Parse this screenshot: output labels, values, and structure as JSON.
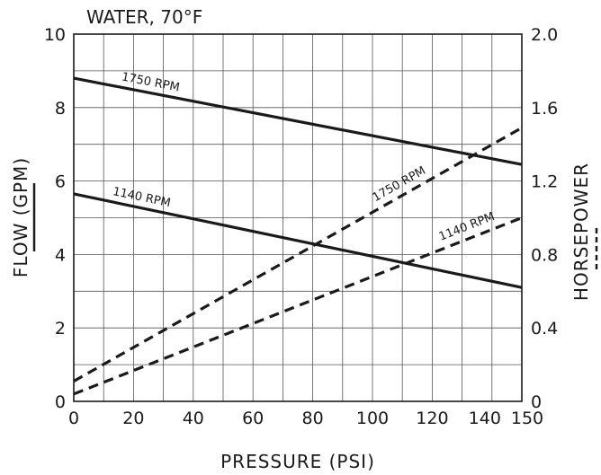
{
  "chart_data": {
    "type": "line",
    "annotation": "WATER, 70°F",
    "xlabel": "PRESSURE (PSI)",
    "ylabel_left": "FLOW (GPM)",
    "ylabel_right": "HORSEPOWER",
    "xlim": [
      0,
      150
    ],
    "ylim_left": [
      0,
      10
    ],
    "ylim_right": [
      0,
      2.0
    ],
    "x_ticks": [
      "0",
      "20",
      "40",
      "60",
      "80",
      "100",
      "120",
      "140",
      "150"
    ],
    "x_tick_values": [
      0,
      20,
      40,
      60,
      80,
      100,
      120,
      140,
      150
    ],
    "y_left_ticks": [
      "0",
      "2",
      "4",
      "6",
      "8",
      "10"
    ],
    "y_left_tick_values": [
      0,
      2,
      4,
      6,
      8,
      10
    ],
    "y_right_ticks": [
      "0",
      "0.4",
      "0.8",
      "1.2",
      "1.6",
      "2.0"
    ],
    "y_right_tick_values": [
      0,
      0.4,
      0.8,
      1.2,
      1.6,
      2.0
    ],
    "grid": true,
    "series": [
      {
        "name": "1750 RPM",
        "axis": "left",
        "style": "solid",
        "x": [
          0,
          150
        ],
        "y": [
          8.8,
          6.45
        ]
      },
      {
        "name": "1140 RPM",
        "axis": "left",
        "style": "solid",
        "x": [
          0,
          150
        ],
        "y": [
          5.65,
          3.1
        ]
      },
      {
        "name": "1750 RPM",
        "axis": "right",
        "style": "dashed",
        "x": [
          0,
          150
        ],
        "y": [
          0.11,
          1.49
        ]
      },
      {
        "name": "1140 RPM",
        "axis": "right",
        "style": "dashed",
        "x": [
          0,
          150
        ],
        "y": [
          0.04,
          1.0
        ]
      }
    ],
    "line_color": "#1a1a1a",
    "grid_color": "#555555"
  }
}
